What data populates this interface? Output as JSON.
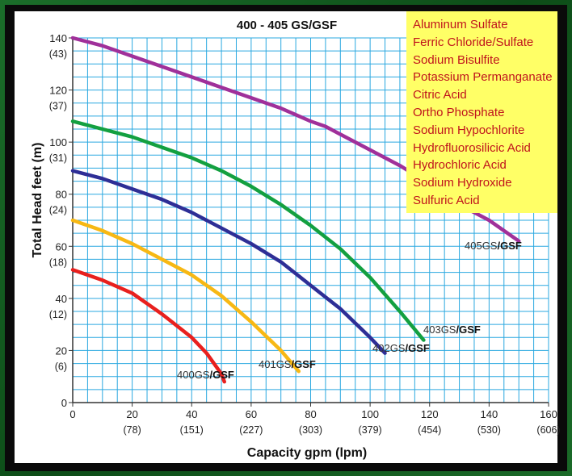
{
  "chart_data": {
    "type": "line",
    "title": "400 - 405 GS/GSF",
    "xlabel": "Capacity gpm (lpm)",
    "ylabel": "Total Head feet (m)",
    "xlim": [
      0,
      160
    ],
    "ylim": [
      0,
      140
    ],
    "grid": true,
    "x_ticks": [
      {
        "value": 0,
        "primary": "0",
        "secondary": ""
      },
      {
        "value": 20,
        "primary": "20",
        "secondary": "(78)"
      },
      {
        "value": 40,
        "primary": "40",
        "secondary": "(151)"
      },
      {
        "value": 60,
        "primary": "60",
        "secondary": "(227)"
      },
      {
        "value": 80,
        "primary": "80",
        "secondary": "(303)"
      },
      {
        "value": 100,
        "primary": "100",
        "secondary": "(379)"
      },
      {
        "value": 120,
        "primary": "120",
        "secondary": "(454)"
      },
      {
        "value": 140,
        "primary": "140",
        "secondary": "(530)"
      },
      {
        "value": 160,
        "primary": "160",
        "secondary": "(606)"
      }
    ],
    "y_ticks": [
      {
        "value": 0,
        "primary": "0",
        "secondary": ""
      },
      {
        "value": 20,
        "primary": "20",
        "secondary": "(6)"
      },
      {
        "value": 40,
        "primary": "40",
        "secondary": "(12)"
      },
      {
        "value": 60,
        "primary": "60",
        "secondary": "(18)"
      },
      {
        "value": 80,
        "primary": "80",
        "secondary": "(24)"
      },
      {
        "value": 100,
        "primary": "100",
        "secondary": "(31)"
      },
      {
        "value": 120,
        "primary": "120",
        "secondary": "(37)"
      },
      {
        "value": 140,
        "primary": "140",
        "secondary": "(43)"
      }
    ],
    "series": [
      {
        "name": "400GS/GSF",
        "prefix": "400GS",
        "suffix": "/GSF",
        "color": "#e8201e",
        "x": [
          0,
          10,
          20,
          30,
          40,
          45,
          50,
          51
        ],
        "y": [
          51,
          47,
          42,
          34,
          25,
          19,
          11,
          8
        ]
      },
      {
        "name": "401GS/GSF",
        "prefix": "401GS",
        "suffix": "/GSF",
        "color": "#f7b814",
        "x": [
          0,
          10,
          20,
          30,
          40,
          50,
          60,
          70,
          76
        ],
        "y": [
          70,
          66,
          61,
          55,
          49,
          41,
          31,
          20,
          12
        ]
      },
      {
        "name": "402GS/GSF",
        "prefix": "402GS",
        "suffix": "/GSF",
        "color": "#2e2e96",
        "x": [
          0,
          10,
          20,
          30,
          40,
          50,
          60,
          70,
          80,
          90,
          100,
          105
        ],
        "y": [
          89,
          86,
          82,
          78,
          73,
          67,
          61,
          54,
          45,
          36,
          25,
          19
        ]
      },
      {
        "name": "403GS/GSF",
        "prefix": "403GS",
        "suffix": "/GSF",
        "color": "#13a040",
        "x": [
          0,
          10,
          20,
          30,
          40,
          50,
          60,
          70,
          80,
          90,
          100,
          110,
          118
        ],
        "y": [
          108,
          105,
          102,
          98,
          94,
          89,
          83,
          76,
          68,
          59,
          48,
          35,
          24
        ]
      },
      {
        "name": "405GS/GSF",
        "prefix": "405GS",
        "suffix": "/GSF",
        "color": "#a0309a",
        "x": [
          0,
          10,
          20,
          30,
          40,
          50,
          60,
          70,
          80,
          85,
          90,
          100,
          110,
          120,
          130,
          140,
          150
        ],
        "y": [
          140,
          137,
          133,
          129,
          125,
          121,
          117,
          113,
          108,
          106,
          103,
          97,
          91,
          84,
          76,
          70,
          62
        ]
      }
    ],
    "legend": {
      "placement": "top-right",
      "items": [
        "Aluminum Sulfate",
        "Ferric Chloride/Sulfate",
        "Sodium Bisulfite",
        "Potassium Permanganate",
        "Citric Acid",
        "Ortho Phosphate",
        "Sodium Hypochlorite",
        "Hydrofluorosilicic Acid",
        "Hydrochloric Acid",
        "Sodium Hydroxide",
        "Sulfuric Acid"
      ]
    }
  }
}
